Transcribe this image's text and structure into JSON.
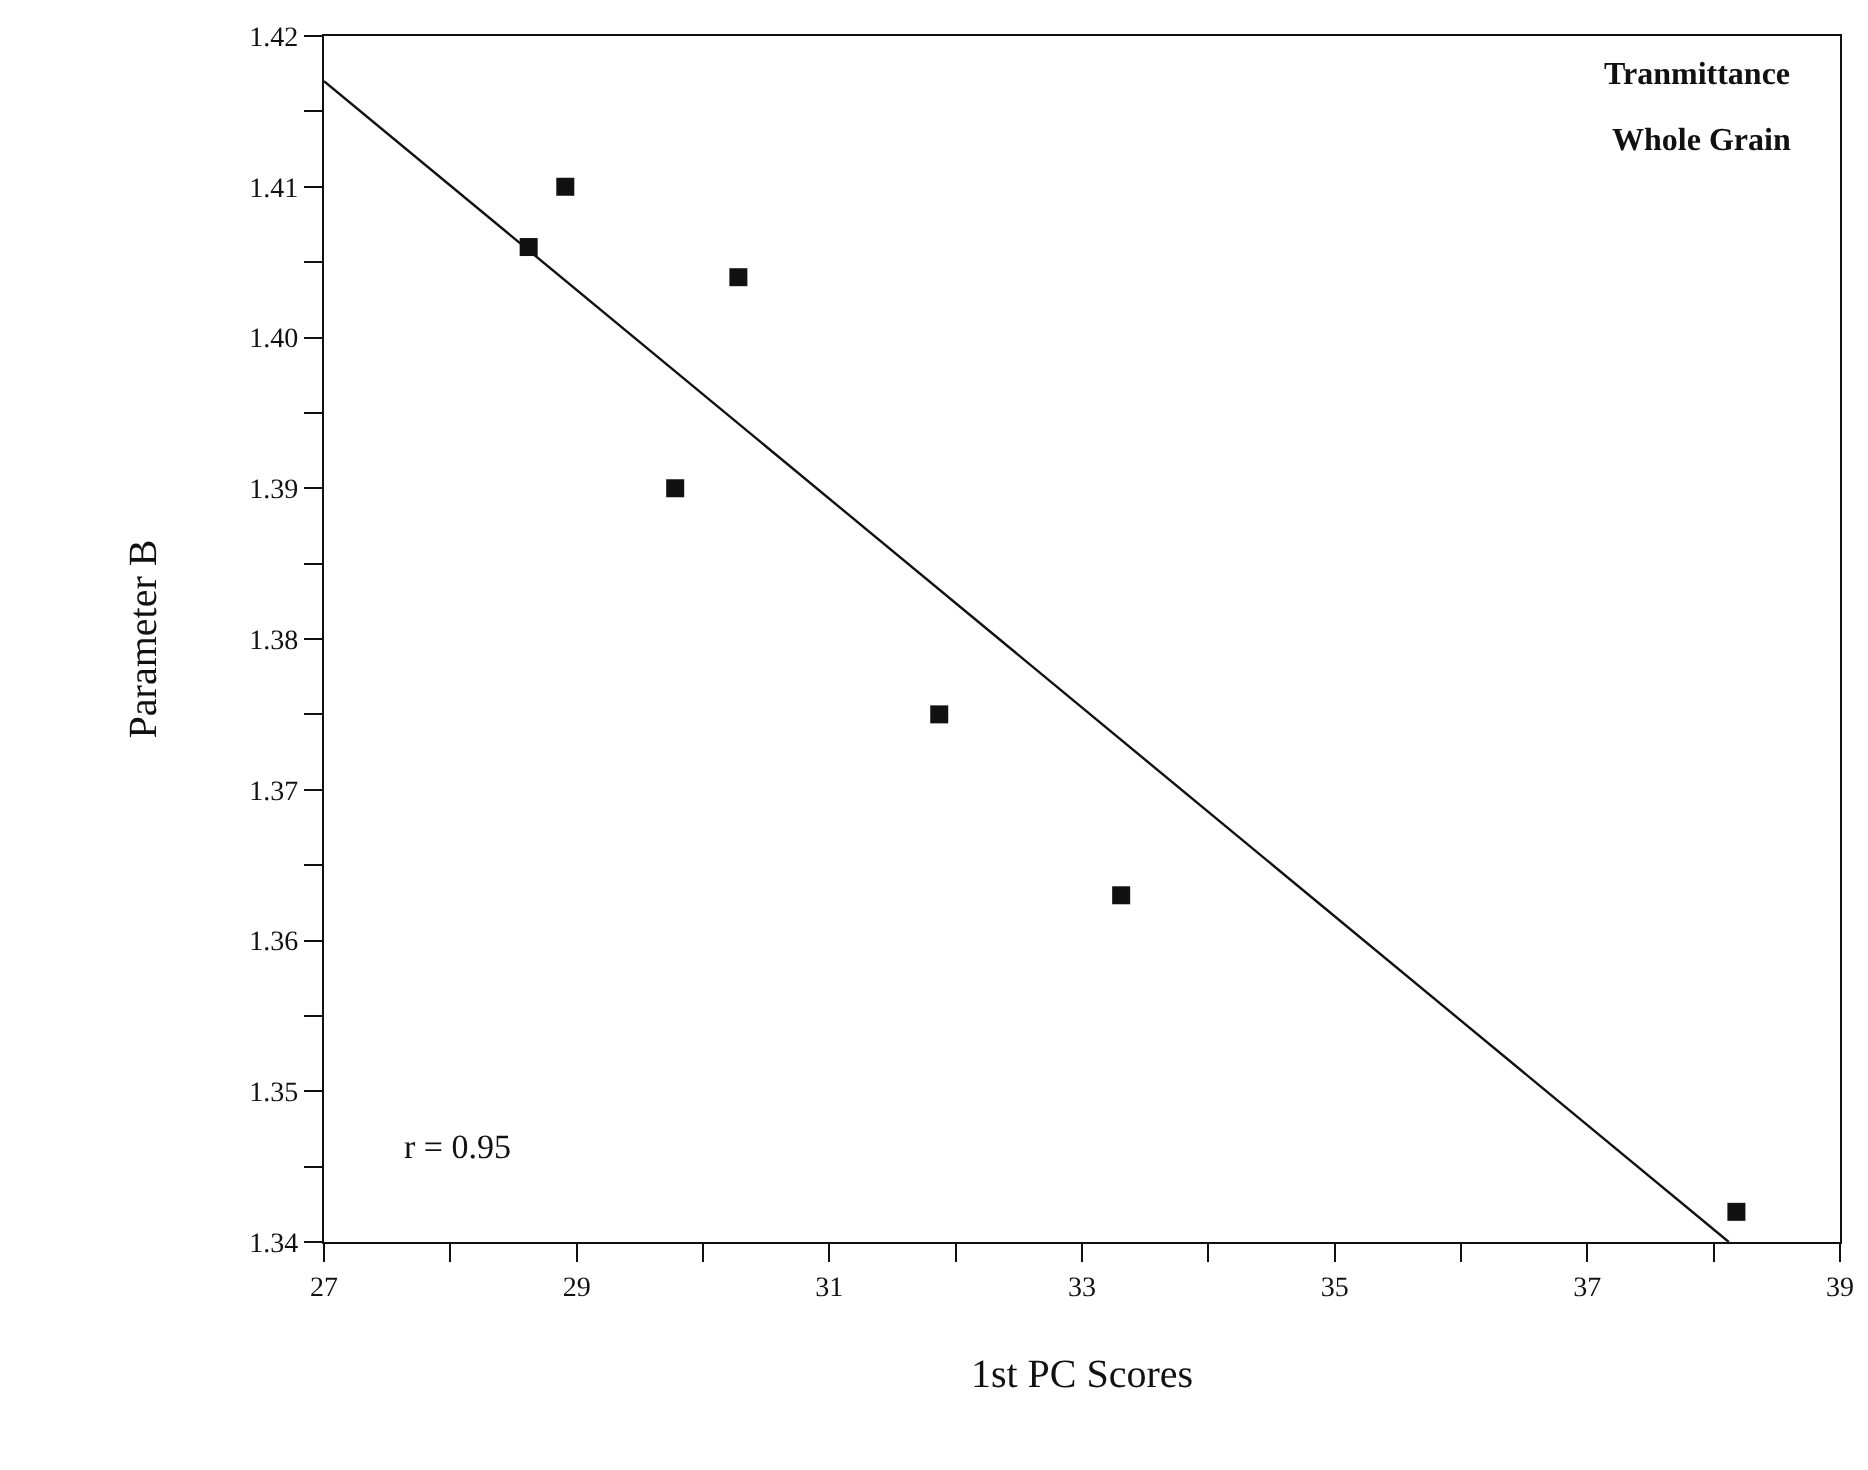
{
  "chart_data": {
    "type": "scatter",
    "xlabel": "1st PC Scores",
    "ylabel": "Parameter B",
    "annotations": [
      "Tranmittance",
      "Whole Grain",
      "r = 0.95"
    ],
    "series": [
      {
        "type": "scatter",
        "color": "#111111",
        "marker": "square",
        "x": [
          28.62,
          28.91,
          29.78,
          30.28,
          31.87,
          33.31,
          38.18
        ],
        "values": [
          1.406,
          1.41,
          1.39,
          1.404,
          1.375,
          1.363,
          1.342
        ]
      },
      {
        "type": "line",
        "color": "#111111",
        "marker": "none",
        "x": [
          27,
          38.12
        ],
        "values": [
          1.417,
          1.34
        ]
      }
    ],
    "xlim": [
      27,
      39
    ],
    "xticks": [
      27,
      {
        "value": 28,
        "label": null
      },
      29,
      {
        "value": 30,
        "label": null
      },
      31,
      {
        "value": 32,
        "label": null
      },
      33,
      {
        "value": 34,
        "label": null
      },
      35,
      {
        "value": 36,
        "label": null
      },
      37,
      {
        "value": 38,
        "label": null
      },
      39
    ],
    "ylim": [
      1.34,
      1.42
    ],
    "yticks": [
      {
        "value": 1.34,
        "label": "1.34"
      },
      {
        "value": 1.345,
        "label": null
      },
      {
        "value": 1.35,
        "label": "1.35"
      },
      {
        "value": 1.355,
        "label": null
      },
      {
        "value": 1.36,
        "label": "1.36"
      },
      {
        "value": 1.365,
        "label": null
      },
      {
        "value": 1.37,
        "label": "1.37"
      },
      {
        "value": 1.375,
        "label": null
      },
      {
        "value": 1.38,
        "label": "1.38"
      },
      {
        "value": 1.385,
        "label": null
      },
      {
        "value": 1.39,
        "label": "1.39"
      },
      {
        "value": 1.395,
        "label": null
      },
      {
        "value": 1.4,
        "label": "1.40"
      },
      {
        "value": 1.405,
        "label": null
      },
      {
        "value": 1.41,
        "label": "1.41"
      },
      {
        "value": 1.415,
        "label": null
      },
      {
        "value": 1.42,
        "label": "1.42"
      }
    ],
    "grid": false,
    "legend": false
  }
}
